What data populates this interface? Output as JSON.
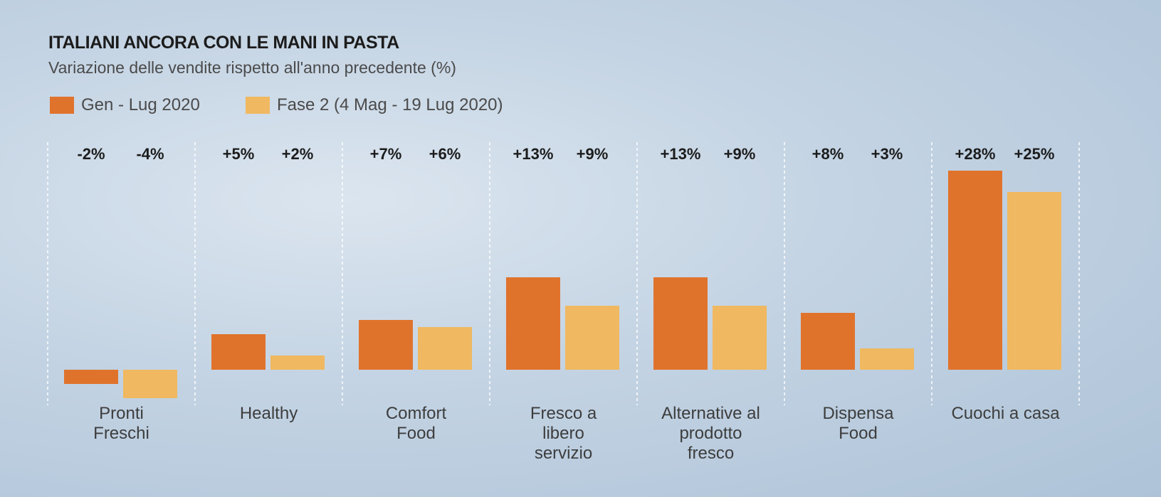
{
  "chart_data": {
    "type": "bar",
    "title": "ITALIANI ANCORA CON LE MANI IN PASTA",
    "subtitle": "Variazione delle vendite rispetto all'anno precedente (%)",
    "categories": [
      "Pronti\nFreschi",
      "Healthy",
      "Comfort\nFood",
      "Fresco a\nlibero\nservizio",
      "Alternative al\nprodotto\nfresco",
      "Dispensa\nFood",
      "Cuochi a casa"
    ],
    "series": [
      {
        "name": "Gen - Lug 2020",
        "color": "#E0732C",
        "values": [
          -2,
          5,
          7,
          13,
          13,
          8,
          28
        ],
        "labels": [
          "-2%",
          "+5%",
          "+7%",
          "+13%",
          "+13%",
          "+8%",
          "+28%"
        ]
      },
      {
        "name": "Fase 2 (4 Mag - 19 Lug 2020)",
        "color": "#F0B860",
        "values": [
          -4,
          2,
          6,
          9,
          9,
          3,
          25
        ],
        "labels": [
          "-4%",
          "+2%",
          "+6%",
          "+9%",
          "+9%",
          "+3%",
          "+25%"
        ]
      }
    ],
    "xlabel": "",
    "ylabel": "",
    "ylim": [
      -4,
      28
    ],
    "grid": false,
    "legend": "top-left"
  }
}
